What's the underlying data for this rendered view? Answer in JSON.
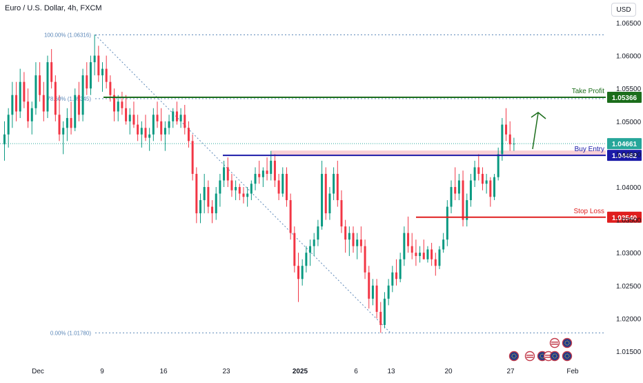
{
  "header": {
    "symbol_title": "Euro / U.S. Dollar, 4h, FXCM",
    "currency_button": "USD"
  },
  "colors": {
    "up": "#089981",
    "down": "#f23645",
    "take_profit": "#1b6d1b",
    "buy_entry": "#1a1aa8",
    "stop_loss": "#e01e1e",
    "resistance_zone": "#f8c8cf",
    "fib_dotted": "#5b87b8",
    "current_price_line": "#26a69a"
  },
  "chart_data": {
    "type": "candlestick",
    "title": "Euro / U.S. Dollar, 4h, FXCM",
    "y_axis": {
      "ticks": [
        "1.06500",
        "1.06000",
        "1.05500",
        "1.05000",
        "1.04500",
        "1.04000",
        "1.03500",
        "1.03000",
        "1.02500",
        "1.02000",
        "1.01500"
      ],
      "ylim": [
        1.0108,
        1.0694
      ],
      "position": "right"
    },
    "x_axis": {
      "ticks": [
        "Dec",
        "9",
        "16",
        "23",
        "2025",
        "6",
        "13",
        "20",
        "27",
        "Feb"
      ]
    },
    "grid": false,
    "fibonacci": [
      {
        "label": "100.00% (1.06316)",
        "price": 1.06316
      },
      {
        "label": "78.60% (1.05345)",
        "price": 1.05345
      },
      {
        "label": "0.00% (1.01780)",
        "price": 1.0178
      }
    ],
    "levels": [
      {
        "name": "Take Profit",
        "price_label": "1.05366",
        "price": 1.05366
      },
      {
        "name": "Buy Entry",
        "price_label": "1.04482",
        "price": 1.04482
      },
      {
        "name": "Stop Loss",
        "price_label": "1.03540",
        "price": 1.0354
      }
    ],
    "current_price": {
      "label": "1.04661",
      "price": 1.04661
    },
    "resistance_zone": {
      "low": 1.04482,
      "high": 1.04555
    },
    "events_count": 8,
    "candles": [
      [
        1.0465,
        1.05,
        1.044,
        1.048
      ],
      [
        1.048,
        1.052,
        1.046,
        1.051
      ],
      [
        1.051,
        1.056,
        1.049,
        1.054
      ],
      [
        1.054,
        1.056,
        1.05,
        1.0515
      ],
      [
        1.0515,
        1.058,
        1.0505,
        1.056
      ],
      [
        1.056,
        1.0575,
        1.052,
        1.053
      ],
      [
        1.053,
        1.055,
        1.049,
        1.05
      ],
      [
        1.05,
        1.053,
        1.048,
        1.052
      ],
      [
        1.052,
        1.059,
        1.051,
        1.057
      ],
      [
        1.057,
        1.059,
        1.053,
        1.054
      ],
      [
        1.054,
        1.056,
        1.05,
        1.0515
      ],
      [
        1.0515,
        1.06,
        1.0505,
        1.059
      ],
      [
        1.059,
        1.061,
        1.055,
        1.056
      ],
      [
        1.056,
        1.057,
        1.05,
        1.051
      ],
      [
        1.051,
        1.054,
        1.047,
        1.048
      ],
      [
        1.048,
        1.05,
        1.045,
        1.049
      ],
      [
        1.049,
        1.052,
        1.047,
        1.0505
      ],
      [
        1.0505,
        1.053,
        1.048,
        1.049
      ],
      [
        1.049,
        1.055,
        1.0485,
        1.054
      ],
      [
        1.054,
        1.056,
        1.05,
        1.051
      ],
      [
        1.051,
        1.058,
        1.05,
        1.057
      ],
      [
        1.057,
        1.059,
        1.054,
        1.055
      ],
      [
        1.055,
        1.06,
        1.054,
        1.059
      ],
      [
        1.059,
        1.0632,
        1.057,
        1.06
      ],
      [
        1.06,
        1.0615,
        1.056,
        1.057
      ],
      [
        1.057,
        1.059,
        1.0545,
        1.058
      ],
      [
        1.058,
        1.06,
        1.055,
        1.056
      ],
      [
        1.056,
        1.057,
        1.053,
        1.054
      ],
      [
        1.054,
        1.055,
        1.05,
        1.0515
      ],
      [
        1.0515,
        1.054,
        1.05,
        1.053
      ],
      [
        1.053,
        1.0545,
        1.051,
        1.052
      ],
      [
        1.052,
        1.054,
        1.0495,
        1.05
      ],
      [
        1.05,
        1.052,
        1.048,
        1.051
      ],
      [
        1.051,
        1.053,
        1.049,
        1.0495
      ],
      [
        1.0495,
        1.051,
        1.047,
        1.048
      ],
      [
        1.048,
        1.05,
        1.046,
        1.049
      ],
      [
        1.049,
        1.051,
        1.047,
        1.0475
      ],
      [
        1.0475,
        1.049,
        1.0455,
        1.048
      ],
      [
        1.048,
        1.052,
        1.047,
        1.051
      ],
      [
        1.051,
        1.053,
        1.049,
        1.05
      ],
      [
        1.05,
        1.052,
        1.047,
        1.048
      ],
      [
        1.048,
        1.05,
        1.0455,
        1.049
      ],
      [
        1.049,
        1.051,
        1.048,
        1.05
      ],
      [
        1.05,
        1.052,
        1.049,
        1.0515
      ],
      [
        1.0515,
        1.053,
        1.0495,
        1.05
      ],
      [
        1.05,
        1.052,
        1.049,
        1.051
      ],
      [
        1.051,
        1.0525,
        1.048,
        1.049
      ],
      [
        1.049,
        1.05,
        1.046,
        1.047
      ],
      [
        1.047,
        1.048,
        1.041,
        1.042
      ],
      [
        1.042,
        1.043,
        1.0345,
        1.036
      ],
      [
        1.036,
        1.039,
        1.0345,
        1.038
      ],
      [
        1.038,
        1.042,
        1.036,
        1.04
      ],
      [
        1.04,
        1.041,
        1.036,
        1.037
      ],
      [
        1.037,
        1.038,
        1.0345,
        1.036
      ],
      [
        1.036,
        1.04,
        1.035,
        1.039
      ],
      [
        1.039,
        1.042,
        1.037,
        1.041
      ],
      [
        1.041,
        1.044,
        1.04,
        1.043
      ],
      [
        1.043,
        1.0445,
        1.04,
        1.041
      ],
      [
        1.041,
        1.042,
        1.0385,
        1.0395
      ],
      [
        1.0395,
        1.041,
        1.038,
        1.04
      ],
      [
        1.04,
        1.0405,
        1.038,
        1.039
      ],
      [
        1.039,
        1.04,
        1.0375,
        1.0385
      ],
      [
        1.0385,
        1.04,
        1.037,
        1.039
      ],
      [
        1.039,
        1.041,
        1.038,
        1.0405
      ],
      [
        1.0405,
        1.043,
        1.0395,
        1.042
      ],
      [
        1.042,
        1.044,
        1.0405,
        1.0415
      ],
      [
        1.0415,
        1.043,
        1.04,
        1.0425
      ],
      [
        1.0425,
        1.0445,
        1.041,
        1.042
      ],
      [
        1.042,
        1.0455,
        1.041,
        1.044
      ],
      [
        1.044,
        1.045,
        1.04,
        1.041
      ],
      [
        1.041,
        1.042,
        1.038,
        1.039
      ],
      [
        1.039,
        1.043,
        1.0385,
        1.042
      ],
      [
        1.042,
        1.043,
        1.037,
        1.038
      ],
      [
        1.038,
        1.039,
        1.032,
        1.033
      ],
      [
        1.033,
        1.034,
        1.027,
        1.028
      ],
      [
        1.028,
        1.03,
        1.0225,
        1.026
      ],
      [
        1.026,
        1.029,
        1.025,
        1.028
      ],
      [
        1.028,
        1.031,
        1.027,
        1.03
      ],
      [
        1.03,
        1.032,
        1.028,
        1.031
      ],
      [
        1.031,
        1.033,
        1.0295,
        1.032
      ],
      [
        1.032,
        1.035,
        1.031,
        1.034
      ],
      [
        1.034,
        1.044,
        1.0335,
        1.042
      ],
      [
        1.042,
        1.043,
        1.035,
        1.036
      ],
      [
        1.036,
        1.04,
        1.035,
        1.039
      ],
      [
        1.039,
        1.043,
        1.038,
        1.042
      ],
      [
        1.042,
        1.044,
        1.037,
        1.038
      ],
      [
        1.038,
        1.0395,
        1.033,
        1.034
      ],
      [
        1.034,
        1.035,
        1.03,
        1.032
      ],
      [
        1.032,
        1.034,
        1.0295,
        1.033
      ],
      [
        1.033,
        1.034,
        1.03,
        1.031
      ],
      [
        1.031,
        1.033,
        1.029,
        1.032
      ],
      [
        1.032,
        1.034,
        1.03,
        1.031
      ],
      [
        1.031,
        1.032,
        1.026,
        1.027
      ],
      [
        1.027,
        1.028,
        1.0215,
        1.023
      ],
      [
        1.023,
        1.026,
        1.022,
        1.025
      ],
      [
        1.025,
        1.026,
        1.02,
        1.021
      ],
      [
        1.021,
        1.0225,
        1.0178,
        1.019
      ],
      [
        1.019,
        1.024,
        1.0185,
        1.023
      ],
      [
        1.023,
        1.026,
        1.022,
        1.025
      ],
      [
        1.025,
        1.028,
        1.024,
        1.027
      ],
      [
        1.027,
        1.029,
        1.025,
        1.026
      ],
      [
        1.026,
        1.03,
        1.0255,
        1.029
      ],
      [
        1.029,
        1.034,
        1.028,
        1.033
      ],
      [
        1.033,
        1.0355,
        1.03,
        1.031
      ],
      [
        1.031,
        1.033,
        1.029,
        1.03
      ],
      [
        1.03,
        1.032,
        1.028,
        1.0295
      ],
      [
        1.0295,
        1.031,
        1.0285,
        1.03
      ],
      [
        1.03,
        1.032,
        1.029,
        1.029
      ],
      [
        1.029,
        1.031,
        1.0285,
        1.0305
      ],
      [
        1.0305,
        1.0315,
        1.028,
        1.029
      ],
      [
        1.029,
        1.03,
        1.0265,
        1.028
      ],
      [
        1.028,
        1.031,
        1.0275,
        1.0305
      ],
      [
        1.0305,
        1.033,
        1.03,
        1.032
      ],
      [
        1.032,
        1.038,
        1.031,
        1.037
      ],
      [
        1.037,
        1.041,
        1.036,
        1.04
      ],
      [
        1.04,
        1.043,
        1.038,
        1.039
      ],
      [
        1.039,
        1.042,
        1.038,
        1.041
      ],
      [
        1.041,
        1.0425,
        1.034,
        1.035
      ],
      [
        1.035,
        1.039,
        1.034,
        1.038
      ],
      [
        1.038,
        1.042,
        1.037,
        1.041
      ],
      [
        1.041,
        1.044,
        1.04,
        1.043
      ],
      [
        1.043,
        1.045,
        1.041,
        1.042
      ],
      [
        1.042,
        1.043,
        1.0395,
        1.0405
      ],
      [
        1.0405,
        1.042,
        1.039,
        1.041
      ],
      [
        1.041,
        1.0415,
        1.037,
        1.0385
      ],
      [
        1.0385,
        1.042,
        1.038,
        1.0415
      ],
      [
        1.0415,
        1.046,
        1.041,
        1.045
      ],
      [
        1.045,
        1.0505,
        1.044,
        1.0495
      ],
      [
        1.0495,
        1.052,
        1.047,
        1.048
      ],
      [
        1.048,
        1.05,
        1.0455,
        1.0465
      ],
      [
        1.0465,
        1.0475,
        1.0455,
        1.0466
      ]
    ]
  }
}
